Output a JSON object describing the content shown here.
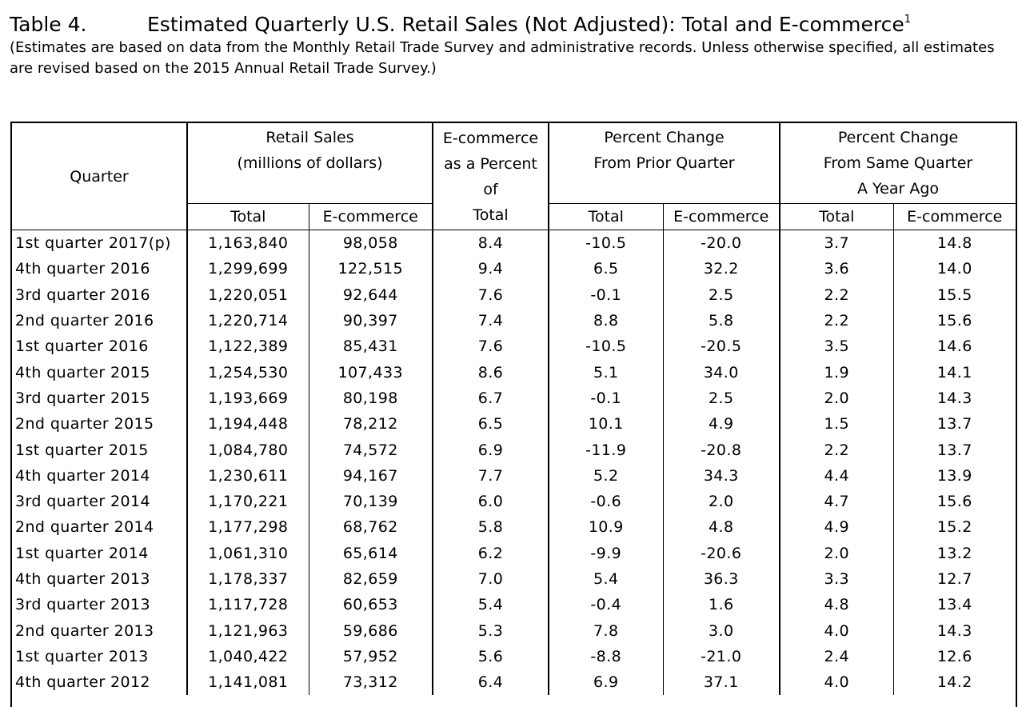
{
  "header": {
    "table_label": "Table 4.",
    "title": "Estimated Quarterly U.S. Retail Sales (Not Adjusted): Total and E-commerce",
    "footnote_mark": "1",
    "subtitle": "(Estimates are based on data from the Monthly Retail Trade Survey and administrative records. Unless otherwise specified, all estimates are revised based on the 2015 Annual Retail Trade Survey.)"
  },
  "columns": {
    "quarter": "Quarter",
    "retail_sales_line1": "Retail Sales",
    "retail_sales_line2": "(millions of dollars)",
    "ecom_pct_line1": "E-commerce",
    "ecom_pct_line2": "as a Percent",
    "ecom_pct_line3": "of",
    "ecom_pct_line4": "Total",
    "pct_prior_line1": "Percent Change",
    "pct_prior_line2": "From Prior Quarter",
    "pct_year_line1": "Percent Change",
    "pct_year_line2": "From Same Quarter",
    "pct_year_line3": "A Year Ago",
    "total": "Total",
    "ecommerce": "E-commerce"
  },
  "rows": [
    {
      "quarter": "1st quarter 2017(p)",
      "total": "1,163,840",
      "ecom": "98,058",
      "pct": "8.4",
      "pq_total": "-10.5",
      "pq_ecom": "-20.0",
      "ya_total": "3.7",
      "ya_ecom": "14.8"
    },
    {
      "quarter": "4th quarter 2016",
      "total": "1,299,699",
      "ecom": "122,515",
      "pct": "9.4",
      "pq_total": "6.5",
      "pq_ecom": "32.2",
      "ya_total": "3.6",
      "ya_ecom": "14.0"
    },
    {
      "quarter": "3rd quarter 2016",
      "total": "1,220,051",
      "ecom": "92,644",
      "pct": "7.6",
      "pq_total": "-0.1",
      "pq_ecom": "2.5",
      "ya_total": "2.2",
      "ya_ecom": "15.5"
    },
    {
      "quarter": "2nd quarter 2016",
      "total": "1,220,714",
      "ecom": "90,397",
      "pct": "7.4",
      "pq_total": "8.8",
      "pq_ecom": "5.8",
      "ya_total": "2.2",
      "ya_ecom": "15.6"
    },
    {
      "quarter": "1st quarter 2016",
      "total": "1,122,389",
      "ecom": "85,431",
      "pct": "7.6",
      "pq_total": "-10.5",
      "pq_ecom": "-20.5",
      "ya_total": "3.5",
      "ya_ecom": "14.6"
    },
    {
      "quarter": "4th quarter 2015",
      "total": "1,254,530",
      "ecom": "107,433",
      "pct": "8.6",
      "pq_total": "5.1",
      "pq_ecom": "34.0",
      "ya_total": "1.9",
      "ya_ecom": "14.1"
    },
    {
      "quarter": "3rd quarter 2015",
      "total": "1,193,669",
      "ecom": "80,198",
      "pct": "6.7",
      "pq_total": "-0.1",
      "pq_ecom": "2.5",
      "ya_total": "2.0",
      "ya_ecom": "14.3"
    },
    {
      "quarter": "2nd quarter 2015",
      "total": "1,194,448",
      "ecom": "78,212",
      "pct": "6.5",
      "pq_total": "10.1",
      "pq_ecom": "4.9",
      "ya_total": "1.5",
      "ya_ecom": "13.7"
    },
    {
      "quarter": "1st quarter 2015",
      "total": "1,084,780",
      "ecom": "74,572",
      "pct": "6.9",
      "pq_total": "-11.9",
      "pq_ecom": "-20.8",
      "ya_total": "2.2",
      "ya_ecom": "13.7"
    },
    {
      "quarter": "4th quarter 2014",
      "total": "1,230,611",
      "ecom": "94,167",
      "pct": "7.7",
      "pq_total": "5.2",
      "pq_ecom": "34.3",
      "ya_total": "4.4",
      "ya_ecom": "13.9"
    },
    {
      "quarter": "3rd quarter 2014",
      "total": "1,170,221",
      "ecom": "70,139",
      "pct": "6.0",
      "pq_total": "-0.6",
      "pq_ecom": "2.0",
      "ya_total": "4.7",
      "ya_ecom": "15.6"
    },
    {
      "quarter": "2nd quarter 2014",
      "total": "1,177,298",
      "ecom": "68,762",
      "pct": "5.8",
      "pq_total": "10.9",
      "pq_ecom": "4.8",
      "ya_total": "4.9",
      "ya_ecom": "15.2"
    },
    {
      "quarter": "1st quarter 2014",
      "total": "1,061,310",
      "ecom": "65,614",
      "pct": "6.2",
      "pq_total": "-9.9",
      "pq_ecom": "-20.6",
      "ya_total": "2.0",
      "ya_ecom": "13.2"
    },
    {
      "quarter": "4th quarter 2013",
      "total": "1,178,337",
      "ecom": "82,659",
      "pct": "7.0",
      "pq_total": "5.4",
      "pq_ecom": "36.3",
      "ya_total": "3.3",
      "ya_ecom": "12.7"
    },
    {
      "quarter": "3rd quarter 2013",
      "total": "1,117,728",
      "ecom": "60,653",
      "pct": "5.4",
      "pq_total": "-0.4",
      "pq_ecom": "1.6",
      "ya_total": "4.8",
      "ya_ecom": "13.4"
    },
    {
      "quarter": "2nd quarter 2013",
      "total": "1,121,963",
      "ecom": "59,686",
      "pct": "5.3",
      "pq_total": "7.8",
      "pq_ecom": "3.0",
      "ya_total": "4.0",
      "ya_ecom": "14.3"
    },
    {
      "quarter": "1st quarter 2013",
      "total": "1,040,422",
      "ecom": "57,952",
      "pct": "5.6",
      "pq_total": "-8.8",
      "pq_ecom": "-21.0",
      "ya_total": "2.4",
      "ya_ecom": "12.6"
    },
    {
      "quarter": "4th quarter 2012",
      "total": "1,141,081",
      "ecom": "73,312",
      "pct": "6.4",
      "pq_total": "6.9",
      "pq_ecom": "37.1",
      "ya_total": "4.0",
      "ya_ecom": "14.2"
    }
  ]
}
